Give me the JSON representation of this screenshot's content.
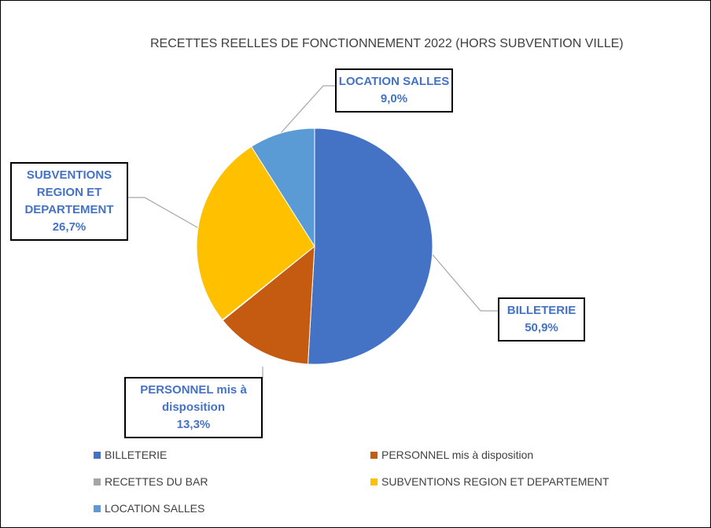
{
  "chart_data": {
    "type": "pie",
    "title": "RECETTES REELLES DE FONCTIONNEMENT 2022 (HORS SUBVENTION VILLE)",
    "categories": [
      "BILLETERIE",
      "PERSONNEL mis à disposition",
      "RECETTES DU BAR",
      "SUBVENTIONS REGION ET DEPARTEMENT",
      "LOCATION SALLES"
    ],
    "values": [
      50.9,
      13.3,
      0.1,
      26.7,
      9.0
    ],
    "value_labels": [
      "50,9%",
      "13,3%",
      null,
      "26,7%",
      "9,0%"
    ],
    "colors": [
      "#4472c4",
      "#c55a11",
      "#a5a5a5",
      "#ffc000",
      "#5b9bd5"
    ],
    "legend": "bottom"
  }
}
